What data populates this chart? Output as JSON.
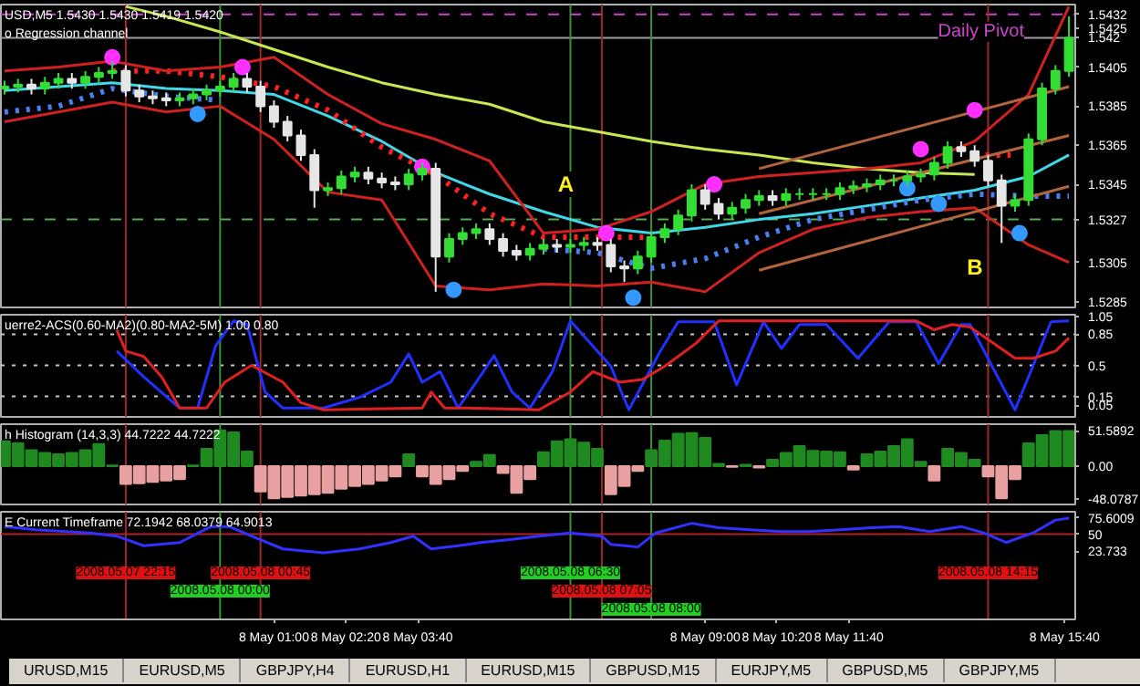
{
  "chart_data": [
    {
      "type": "candlestick",
      "title": "USD,M5  1.5430 1.5430 1.5419 1.5420",
      "subtitle": "o Regression channel",
      "tick_labels": "y",
      "x": [
        "2008-05-07T20:00",
        "2008-05-07T20:15",
        "2008-05-07T20:30",
        "2008-05-07T20:45",
        "2008-05-07T21:00",
        "2008-05-07T21:15",
        "2008-05-07T21:30",
        "2008-05-07T21:45",
        "2008-05-07T22:00",
        "2008-05-07T22:15",
        "2008-05-07T22:30",
        "2008-05-07T22:45",
        "2008-05-07T23:00",
        "2008-05-07T23:15",
        "2008-05-07T23:30",
        "2008-05-07T23:45",
        "2008-05-08T00:00",
        "2008-05-08T00:15",
        "2008-05-08T00:30",
        "2008-05-08T00:45",
        "2008-05-08T01:00",
        "2008-05-08T01:15",
        "2008-05-08T01:30",
        "2008-05-08T01:45",
        "2008-05-08T02:00",
        "2008-05-08T02:15",
        "2008-05-08T02:30",
        "2008-05-08T02:45",
        "2008-05-08T03:00",
        "2008-05-08T03:15",
        "2008-05-08T03:30",
        "2008-05-08T03:45",
        "2008-05-08T04:00",
        "2008-05-08T04:15",
        "2008-05-08T04:30",
        "2008-05-08T04:45",
        "2008-05-08T05:00",
        "2008-05-08T05:15",
        "2008-05-08T05:30",
        "2008-05-08T05:45",
        "2008-05-08T06:00",
        "2008-05-08T06:15",
        "2008-05-08T06:30",
        "2008-05-08T06:45",
        "2008-05-08T07:00",
        "2008-05-08T07:15",
        "2008-05-08T07:30",
        "2008-05-08T07:45",
        "2008-05-08T08:00",
        "2008-05-08T08:15",
        "2008-05-08T08:30",
        "2008-05-08T08:45",
        "2008-05-08T09:00",
        "2008-05-08T09:15",
        "2008-05-08T09:30",
        "2008-05-08T09:45",
        "2008-05-08T10:00",
        "2008-05-08T10:15",
        "2008-05-08T10:30",
        "2008-05-08T10:45",
        "2008-05-08T11:00",
        "2008-05-08T11:15",
        "2008-05-08T11:30",
        "2008-05-08T11:45",
        "2008-05-08T12:00",
        "2008-05-08T12:15",
        "2008-05-08T12:30",
        "2008-05-08T12:45",
        "2008-05-08T13:00",
        "2008-05-08T13:15",
        "2008-05-08T13:30",
        "2008-05-08T13:45",
        "2008-05-08T14:00",
        "2008-05-08T14:15",
        "2008-05-08T14:30",
        "2008-05-08T14:45",
        "2008-05-08T15:00",
        "2008-05-08T15:15",
        "2008-05-08T15:30",
        "2008-05-08T15:45"
      ],
      "ohlc": [
        [
          1.5394,
          1.5398,
          1.5391,
          1.5395
        ],
        [
          1.5395,
          1.5399,
          1.5392,
          1.5396
        ],
        [
          1.5396,
          1.5399,
          1.5391,
          1.5394
        ],
        [
          1.5394,
          1.54,
          1.5391,
          1.5397
        ],
        [
          1.5397,
          1.5402,
          1.5394,
          1.5399
        ],
        [
          1.5399,
          1.5402,
          1.5394,
          1.5397
        ],
        [
          1.5397,
          1.5403,
          1.5394,
          1.54
        ],
        [
          1.54,
          1.5405,
          1.5397,
          1.5402
        ],
        [
          1.5402,
          1.5408,
          1.5399,
          1.5403
        ],
        [
          1.5403,
          1.5406,
          1.539,
          1.5393
        ],
        [
          1.5393,
          1.5396,
          1.5387,
          1.539
        ],
        [
          1.539,
          1.5393,
          1.5386,
          1.5389
        ],
        [
          1.5389,
          1.5392,
          1.5385,
          1.5388
        ],
        [
          1.5388,
          1.5392,
          1.5385,
          1.5389
        ],
        [
          1.5389,
          1.5394,
          1.5386,
          1.5391
        ],
        [
          1.5391,
          1.5396,
          1.5388,
          1.5393
        ],
        [
          1.5393,
          1.5398,
          1.539,
          1.5395
        ],
        [
          1.5395,
          1.5402,
          1.5392,
          1.5399
        ],
        [
          1.5399,
          1.5402,
          1.5392,
          1.5395
        ],
        [
          1.5395,
          1.5398,
          1.5382,
          1.5385
        ],
        [
          1.5385,
          1.5388,
          1.5374,
          1.5377
        ],
        [
          1.5377,
          1.538,
          1.5367,
          1.537
        ],
        [
          1.537,
          1.5373,
          1.5357,
          1.536
        ],
        [
          1.536,
          1.5363,
          1.5333,
          1.5342
        ],
        [
          1.5342,
          1.5346,
          1.5339,
          1.5343
        ],
        [
          1.5343,
          1.5352,
          1.534,
          1.5349
        ],
        [
          1.5349,
          1.5354,
          1.5346,
          1.5351
        ],
        [
          1.5351,
          1.5354,
          1.5345,
          1.5348
        ],
        [
          1.5348,
          1.5351,
          1.5343,
          1.5346
        ],
        [
          1.5346,
          1.5349,
          1.5342,
          1.5345
        ],
        [
          1.5345,
          1.5353,
          1.5342,
          1.535
        ],
        [
          1.535,
          1.5356,
          1.5347,
          1.5353
        ],
        [
          1.5353,
          1.5356,
          1.529,
          1.5308
        ],
        [
          1.5308,
          1.532,
          1.5305,
          1.5317
        ],
        [
          1.5317,
          1.5323,
          1.5314,
          1.532
        ],
        [
          1.532,
          1.5325,
          1.5317,
          1.5322
        ],
        [
          1.5322,
          1.5325,
          1.5314,
          1.5317
        ],
        [
          1.5317,
          1.532,
          1.5308,
          1.5311
        ],
        [
          1.5311,
          1.5314,
          1.5306,
          1.5309
        ],
        [
          1.5309,
          1.5315,
          1.5306,
          1.5312
        ],
        [
          1.5312,
          1.5317,
          1.5309,
          1.5314
        ],
        [
          1.5314,
          1.5317,
          1.531,
          1.5313
        ],
        [
          1.5313,
          1.5317,
          1.531,
          1.5314
        ],
        [
          1.5314,
          1.5318,
          1.5311,
          1.5315
        ],
        [
          1.5315,
          1.5318,
          1.5311,
          1.5314
        ],
        [
          1.5314,
          1.5317,
          1.53,
          1.5303
        ],
        [
          1.5303,
          1.5306,
          1.5295,
          1.5302
        ],
        [
          1.5302,
          1.5311,
          1.5299,
          1.5308
        ],
        [
          1.5308,
          1.5321,
          1.5305,
          1.5318
        ],
        [
          1.5318,
          1.5325,
          1.5315,
          1.5322
        ],
        [
          1.5322,
          1.5332,
          1.5319,
          1.5329
        ],
        [
          1.5329,
          1.5345,
          1.5326,
          1.5342
        ],
        [
          1.5342,
          1.5345,
          1.5332,
          1.5335
        ],
        [
          1.5335,
          1.5338,
          1.5327,
          1.533
        ],
        [
          1.533,
          1.5336,
          1.5327,
          1.5333
        ],
        [
          1.5333,
          1.534,
          1.533,
          1.5337
        ],
        [
          1.5337,
          1.5342,
          1.5334,
          1.5339
        ],
        [
          1.5339,
          1.5342,
          1.5334,
          1.5337
        ],
        [
          1.5337,
          1.5343,
          1.5334,
          1.534
        ],
        [
          1.534,
          1.5343,
          1.5337,
          1.534
        ],
        [
          1.534,
          1.5343,
          1.5337,
          1.534
        ],
        [
          1.534,
          1.5343,
          1.5337,
          1.534
        ],
        [
          1.534,
          1.5346,
          1.5337,
          1.5343
        ],
        [
          1.5343,
          1.5347,
          1.534,
          1.5344
        ],
        [
          1.5344,
          1.5348,
          1.5341,
          1.5345
        ],
        [
          1.5345,
          1.535,
          1.5342,
          1.5347
        ],
        [
          1.5347,
          1.535,
          1.5344,
          1.5347
        ],
        [
          1.5347,
          1.5352,
          1.5344,
          1.5349
        ],
        [
          1.5349,
          1.5353,
          1.5346,
          1.535
        ],
        [
          1.535,
          1.5359,
          1.5347,
          1.5356
        ],
        [
          1.5356,
          1.5367,
          1.5353,
          1.5364
        ],
        [
          1.5364,
          1.5367,
          1.5359,
          1.5362
        ],
        [
          1.5362,
          1.5365,
          1.5354,
          1.5357
        ],
        [
          1.5357,
          1.536,
          1.5344,
          1.5347
        ],
        [
          1.5347,
          1.535,
          1.5315,
          1.5334
        ],
        [
          1.5334,
          1.534,
          1.5331,
          1.5337
        ],
        [
          1.5337,
          1.5371,
          1.5334,
          1.5368
        ],
        [
          1.5368,
          1.5397,
          1.5365,
          1.5394
        ],
        [
          1.5394,
          1.5406,
          1.5391,
          1.5403
        ],
        [
          1.5403,
          1.5431,
          1.54,
          1.542
        ]
      ],
      "colors": [
        "#33dd33",
        "#33dd33",
        "#e6e6e6",
        "#33dd33",
        "#33dd33",
        "#e6e6e6",
        "#33dd33",
        "#33dd33",
        "#33dd33",
        "#e6e6e6",
        "#e6e6e6",
        "#e6e6e6",
        "#e6e6e6",
        "#33dd33",
        "#33dd33",
        "#33dd33",
        "#33dd33",
        "#33dd33",
        "#e6e6e6",
        "#e6e6e6",
        "#e6e6e6",
        "#e6e6e6",
        "#e6e6e6",
        "#e6e6e6",
        "#33dd33",
        "#33dd33",
        "#33dd33",
        "#e6e6e6",
        "#e6e6e6",
        "#e6e6e6",
        "#33dd33",
        "#33dd33",
        "#e6e6e6",
        "#33dd33",
        "#33dd33",
        "#33dd33",
        "#e6e6e6",
        "#e6e6e6",
        "#e6e6e6",
        "#33dd33",
        "#33dd33",
        "#e6e6e6",
        "#33dd33",
        "#33dd33",
        "#e6e6e6",
        "#e6e6e6",
        "#e6e6e6",
        "#33dd33",
        "#33dd33",
        "#33dd33",
        "#33dd33",
        "#33dd33",
        "#e6e6e6",
        "#e6e6e6",
        "#33dd33",
        "#33dd33",
        "#33dd33",
        "#e6e6e6",
        "#33dd33",
        "#33dd33",
        "#33dd33",
        "#33dd33",
        "#33dd33",
        "#33dd33",
        "#33dd33",
        "#33dd33",
        "#33dd33",
        "#33dd33",
        "#33dd33",
        "#33dd33",
        "#33dd33",
        "#e6e6e6",
        "#e6e6e6",
        "#e6e6e6",
        "#e6e6e6",
        "#33dd33",
        "#33dd33",
        "#33dd33",
        "#33dd33",
        "#33dd33"
      ],
      "series": [
        {
          "type": "line",
          "color": "#c8e650",
          "x": [
            "2008-05-07T22:15",
            "2008-05-07T23:00",
            "2008-05-08T00:00",
            "2008-05-08T01:00",
            "2008-05-08T02:00",
            "2008-05-08T03:00",
            "2008-05-08T04:00",
            "2008-05-08T05:00",
            "2008-05-08T06:00",
            "2008-05-08T07:00",
            "2008-05-08T08:00",
            "2008-05-08T09:00",
            "2008-05-08T10:00",
            "2008-05-08T11:00",
            "2008-05-08T12:00",
            "2008-05-08T13:00",
            "2008-05-08T14:00"
          ],
          "values": [
            1.5436,
            1.5431,
            1.5423,
            1.5414,
            1.5405,
            1.5397,
            1.5391,
            1.5386,
            1.5377,
            1.5372,
            1.5367,
            1.5363,
            1.536,
            1.5356,
            1.5353,
            1.5351,
            1.535
          ]
        },
        {
          "type": "line",
          "color": "#40d8e8",
          "x": [
            "2008-05-07T20:00",
            "2008-05-07T21:00",
            "2008-05-07T22:00",
            "2008-05-07T23:00",
            "2008-05-08T00:00",
            "2008-05-08T01:00",
            "2008-05-08T02:00",
            "2008-05-08T03:00",
            "2008-05-08T04:00",
            "2008-05-08T05:00",
            "2008-05-08T06:00",
            "2008-05-08T07:00",
            "2008-05-08T08:00",
            "2008-05-08T09:00",
            "2008-05-08T10:00",
            "2008-05-08T11:00",
            "2008-05-08T12:00",
            "2008-05-08T13:00",
            "2008-05-08T14:00",
            "2008-05-08T15:00",
            "2008-05-08T15:45"
          ],
          "values": [
            1.5393,
            1.5395,
            1.5397,
            1.5394,
            1.5393,
            1.5391,
            1.538,
            1.5367,
            1.5351,
            1.534,
            1.5331,
            1.5323,
            1.532,
            1.5323,
            1.5327,
            1.533,
            1.5334,
            1.5338,
            1.5342,
            1.5349,
            1.536
          ]
        },
        {
          "type": "line",
          "color": "#4a7ff0",
          "line_style": "dotted",
          "x": [
            "2008-05-07T20:00",
            "2008-05-07T21:00",
            "2008-05-07T22:00",
            "2008-05-07T23:00",
            "2008-05-08T00:00",
            "2008-05-08T01:00",
            "2008-05-08T02:00",
            "2008-05-08T03:00",
            "2008-05-08T04:00",
            "2008-05-08T05:00",
            "2008-05-08T06:00",
            "2008-05-08T07:00",
            "2008-05-08T08:00",
            "2008-05-08T09:00",
            "2008-05-08T10:00",
            "2008-05-08T11:00",
            "2008-05-08T12:00",
            "2008-05-08T13:00",
            "2008-05-08T14:00",
            "2008-05-08T15:00",
            "2008-05-08T15:45"
          ],
          "values": [
            1.5382,
            1.5385,
            1.5394,
            1.539,
            1.5388,
            null,
            null,
            null,
            null,
            null,
            1.5312,
            1.531,
            1.5302,
            1.5307,
            1.5318,
            1.5327,
            1.5332,
            1.5337,
            1.534,
            1.5339,
            1.5339
          ]
        },
        {
          "type": "line",
          "color": "#ff2020",
          "line_style": "dotted",
          "x": [
            "2008-05-07T22:00",
            "2008-05-07T23:00",
            "2008-05-08T00:00",
            "2008-05-08T01:00",
            "2008-05-08T02:00",
            "2008-05-08T03:00",
            "2008-05-08T04:00",
            "2008-05-08T05:00",
            "2008-05-08T06:00",
            "2008-05-08T07:00",
            "2008-05-08T08:00",
            "2008-05-08T11:00",
            "2008-05-08T14:00",
            "2008-05-08T14:40"
          ],
          "values": [
            1.5403,
            1.5403,
            1.54,
            1.5395,
            1.5383,
            1.5364,
            1.535,
            1.533,
            1.5318,
            1.5318,
            1.5318,
            null,
            1.536,
            1.536
          ]
        },
        {
          "type": "line",
          "color": "#d02020",
          "x": [
            "2008-05-07T20:00",
            "2008-05-07T21:00",
            "2008-05-07T22:00",
            "2008-05-07T23:00",
            "2008-05-08T00:00",
            "2008-05-08T01:00",
            "2008-05-08T02:00",
            "2008-05-08T03:00",
            "2008-05-08T04:00",
            "2008-05-08T05:00",
            "2008-05-08T06:00",
            "2008-05-08T07:00",
            "2008-05-08T08:00",
            "2008-05-08T09:00",
            "2008-05-08T10:00",
            "2008-05-08T11:00",
            "2008-05-08T12:00",
            "2008-05-08T13:00",
            "2008-05-08T14:00",
            "2008-05-08T15:00",
            "2008-05-08T15:45"
          ],
          "values": [
            1.5403,
            1.5405,
            1.5408,
            1.5403,
            1.5405,
            1.541,
            1.5391,
            1.5376,
            1.5368,
            1.5357,
            1.532,
            1.5322,
            1.5331,
            1.5345,
            1.5349,
            1.5351,
            1.5353,
            1.5356,
            1.5367,
            1.5391,
            1.5436
          ]
        },
        {
          "type": "line",
          "color": "#d02020",
          "x": [
            "2008-05-07T20:00",
            "2008-05-07T21:00",
            "2008-05-07T22:00",
            "2008-05-07T23:00",
            "2008-05-08T00:00",
            "2008-05-08T01:00",
            "2008-05-08T02:00",
            "2008-05-08T03:00",
            "2008-05-08T04:00",
            "2008-05-08T05:00",
            "2008-05-08T06:00",
            "2008-05-08T07:00",
            "2008-05-08T08:00",
            "2008-05-08T09:00",
            "2008-05-08T10:00",
            "2008-05-08T11:00",
            "2008-05-08T12:00",
            "2008-05-08T13:00",
            "2008-05-08T14:00",
            "2008-05-08T15:00",
            "2008-05-08T15:45"
          ],
          "values": [
            1.5377,
            1.5382,
            1.5387,
            1.5382,
            1.5385,
            1.5368,
            1.5341,
            1.5337,
            1.5293,
            1.5291,
            1.5294,
            1.5293,
            1.5295,
            1.529,
            1.531,
            1.5322,
            1.5328,
            1.5331,
            1.5333,
            1.5314,
            1.5305
          ]
        },
        {
          "type": "line",
          "color": "#b4643c",
          "x": [
            "2008-05-08T10:00",
            "2008-05-08T15:45"
          ],
          "values": [
            1.5353,
            1.5395
          ]
        },
        {
          "type": "line",
          "color": "#b4643c",
          "x": [
            "2008-05-08T10:00",
            "2008-05-08T15:45"
          ],
          "values": [
            1.533,
            1.537
          ]
        },
        {
          "type": "line",
          "color": "#b4643c",
          "x": [
            "2008-05-08T10:00",
            "2008-05-08T15:45"
          ],
          "values": [
            1.5301,
            1.5344
          ]
        },
        {
          "type": "scatter",
          "marker": "circle",
          "color": "#ff30ff",
          "x": [
            "2008-05-07T22:00",
            "2008-05-08T00:25",
            "2008-05-08T03:45",
            "2008-05-08T07:10",
            "2008-05-08T09:10",
            "2008-05-08T13:00",
            "2008-05-08T14:00"
          ],
          "values": [
            1.541,
            1.5405,
            1.5354,
            1.532,
            1.5345,
            1.5363,
            1.5383
          ]
        },
        {
          "type": "scatter",
          "marker": "circle",
          "color": "#3399ff",
          "x": [
            "2008-05-07T23:35",
            "2008-05-08T04:20",
            "2008-05-08T07:40",
            "2008-05-08T12:45",
            "2008-05-08T13:20",
            "2008-05-08T14:50"
          ],
          "values": [
            1.5381,
            1.5291,
            1.5287,
            1.5343,
            1.5335,
            1.532
          ]
        }
      ],
      "xlim": [
        "2008-05-07T19:56",
        "2008-05-08T15:52"
      ],
      "ylim": [
        1.5282,
        1.5437
      ],
      "yticks": [
        1.5285,
        1.5305,
        1.5327,
        1.5345,
        1.5365,
        1.5385,
        1.5405,
        1.542,
        1.5425,
        1.5432
      ],
      "ref_lines": [
        {
          "axis": "y",
          "value": 1.5432,
          "label": "Daily Pivot",
          "color": "#cc44cc",
          "line_style": "dashed"
        },
        {
          "axis": "y",
          "value": 1.542,
          "color": "#a0a0a0",
          "line_style": "solid"
        },
        {
          "axis": "y",
          "value": 1.5327,
          "color": "#55aa55",
          "line_style": "dashed"
        },
        {
          "axis": "x",
          "value": "2008-05-07T22:15",
          "color": "#a02828"
        },
        {
          "axis": "x",
          "value": "2008-05-08T00:00",
          "color": "#3f8f3f"
        },
        {
          "axis": "x",
          "value": "2008-05-08T00:45",
          "color": "#a02828"
        },
        {
          "axis": "x",
          "value": "2008-05-08T06:30",
          "color": "#3f8f3f"
        },
        {
          "axis": "x",
          "value": "2008-05-08T07:05",
          "color": "#a02828"
        },
        {
          "axis": "x",
          "value": "2008-05-08T08:00",
          "color": "#3f8f3f"
        },
        {
          "axis": "x",
          "value": "2008-05-08T14:15",
          "color": "#a02828"
        }
      ],
      "annotations": [
        {
          "text": "A",
          "x": "2008-05-08T06:25",
          "y": 1.5345
        },
        "B"
      ]
    },
    {
      "type": "line",
      "title": "uerre2-ACS(0.60-MA2)(0.80-MA2-5M)  1.00 0.80",
      "tick_labels": "y",
      "series": [
        {
          "color": "#2030ff",
          "x": [
            "2008-05-07T22:05",
            "2008-05-07T22:35",
            "2008-05-07T23:15",
            "2008-05-07T23:35",
            "2008-05-07T23:55",
            "2008-05-08T00:15",
            "2008-05-08T00:30",
            "2008-05-08T00:50",
            "2008-05-08T01:10",
            "2008-05-08T01:55",
            "2008-05-08T02:35",
            "2008-05-08T03:10",
            "2008-05-08T03:30",
            "2008-05-08T03:45",
            "2008-05-08T04:05",
            "2008-05-08T04:25",
            "2008-05-08T04:45",
            "2008-05-08T05:05",
            "2008-05-08T05:25",
            "2008-05-08T05:45",
            "2008-05-08T06:10",
            "2008-05-08T06:30",
            "2008-05-08T07:15",
            "2008-05-08T07:35",
            "2008-05-08T08:10",
            "2008-05-08T08:30",
            "2008-05-08T09:10",
            "2008-05-08T09:35",
            "2008-05-08T10:05",
            "2008-05-08T10:25",
            "2008-05-08T10:45",
            "2008-05-08T11:15",
            "2008-05-08T11:50",
            "2008-05-08T12:25",
            "2008-05-08T12:55",
            "2008-05-08T13:20",
            "2008-05-08T13:45",
            "2008-05-08T13:55",
            "2008-05-08T14:45",
            "2008-05-08T15:25",
            "2008-05-08T15:45"
          ],
          "values": [
            0.66,
            0.37,
            0.02,
            0.02,
            0.72,
            1.0,
            0.96,
            0.2,
            0.02,
            0.02,
            0.14,
            0.31,
            0.63,
            0.31,
            0.43,
            0.02,
            0.31,
            0.61,
            0.2,
            0.02,
            0.43,
            1.0,
            0.49,
            0.0,
            0.66,
            0.99,
            0.99,
            0.28,
            0.99,
            0.69,
            0.96,
            0.96,
            0.58,
            0.99,
            0.99,
            0.52,
            0.96,
            0.96,
            0.0,
            0.99,
            1.0
          ]
        },
        {
          "color": "#e02020",
          "x": [
            "2008-05-07T22:05",
            "2008-05-07T22:15",
            "2008-05-07T22:35",
            "2008-05-07T22:55",
            "2008-05-07T23:15",
            "2008-05-07T23:45",
            "2008-05-08T00:05",
            "2008-05-08T00:35",
            "2008-05-08T01:10",
            "2008-05-08T01:30",
            "2008-05-08T01:55",
            "2008-05-08T03:45",
            "2008-05-08T03:55",
            "2008-05-08T04:10",
            "2008-05-08T04:35",
            "2008-05-08T05:55",
            "2008-05-08T06:30",
            "2008-05-08T06:55",
            "2008-05-08T07:25",
            "2008-05-08T07:50",
            "2008-05-08T08:15",
            "2008-05-08T08:50",
            "2008-05-08T09:15",
            "2008-05-08T12:55",
            "2008-05-08T13:15",
            "2008-05-08T13:35",
            "2008-05-08T13:55",
            "2008-05-08T14:25",
            "2008-05-08T14:45",
            "2008-05-08T15:05",
            "2008-05-08T15:30",
            "2008-05-08T15:45"
          ],
          "values": [
            0.9,
            0.66,
            0.6,
            0.37,
            0.02,
            0.02,
            0.31,
            0.5,
            0.31,
            0.08,
            0.0,
            0.02,
            0.2,
            0.02,
            0.02,
            0.0,
            0.2,
            0.43,
            0.31,
            0.34,
            0.49,
            0.75,
            1.0,
            1.0,
            0.9,
            0.96,
            0.93,
            0.72,
            0.58,
            0.58,
            0.66,
            0.81
          ]
        }
      ],
      "xlim": [
        "2008-05-07T19:56",
        "2008-05-08T15:52"
      ],
      "ylim": [
        -0.08,
        1.07
      ],
      "yticks": [
        0.05,
        0.15,
        0.5,
        0.85,
        1.05
      ],
      "ref_lines": [
        {
          "axis": "y",
          "value": 0.85,
          "color": "#c8c8c8",
          "line_style": "dotted"
        },
        {
          "axis": "y",
          "value": 0.5,
          "color": "#c8c8c8",
          "line_style": "dotted"
        },
        {
          "axis": "y",
          "value": 0.15,
          "color": "#c8c8c8",
          "line_style": "dotted"
        },
        {
          "axis": "x",
          "value": "2008-05-07T22:15",
          "color": "#a02828"
        },
        {
          "axis": "x",
          "value": "2008-05-08T00:00",
          "color": "#3f8f3f"
        },
        {
          "axis": "x",
          "value": "2008-05-08T00:45",
          "color": "#a02828"
        },
        {
          "axis": "x",
          "value": "2008-05-08T06:30",
          "color": "#3f8f3f"
        },
        {
          "axis": "x",
          "value": "2008-05-08T07:05",
          "color": "#a02828"
        },
        {
          "axis": "x",
          "value": "2008-05-08T08:00",
          "color": "#3f8f3f"
        },
        {
          "axis": "x",
          "value": "2008-05-08T14:15",
          "color": "#a02828"
        }
      ]
    },
    {
      "type": "bar",
      "title": "h Histogram (14,3,3) 44.7222 44.7222",
      "tick_labels": "y",
      "x": [
        "2008-05-07T20:00",
        "2008-05-07T20:15",
        "2008-05-07T20:30",
        "2008-05-07T20:45",
        "2008-05-07T21:00",
        "2008-05-07T21:15",
        "2008-05-07T21:30",
        "2008-05-07T21:45",
        "2008-05-07T22:00",
        "2008-05-07T22:15",
        "2008-05-07T22:30",
        "2008-05-07T22:45",
        "2008-05-07T23:00",
        "2008-05-07T23:15",
        "2008-05-07T23:30",
        "2008-05-07T23:45",
        "2008-05-08T00:00",
        "2008-05-08T00:15",
        "2008-05-08T00:30",
        "2008-05-08T00:45",
        "2008-05-08T01:00",
        "2008-05-08T01:15",
        "2008-05-08T01:30",
        "2008-05-08T01:45",
        "2008-05-08T02:00",
        "2008-05-08T02:15",
        "2008-05-08T02:30",
        "2008-05-08T02:45",
        "2008-05-08T03:00",
        "2008-05-08T03:15",
        "2008-05-08T03:30",
        "2008-05-08T03:45",
        "2008-05-08T04:00",
        "2008-05-08T04:15",
        "2008-05-08T04:30",
        "2008-05-08T04:45",
        "2008-05-08T05:00",
        "2008-05-08T05:15",
        "2008-05-08T05:30",
        "2008-05-08T05:45",
        "2008-05-08T06:00",
        "2008-05-08T06:15",
        "2008-05-08T06:30",
        "2008-05-08T06:45",
        "2008-05-08T07:00",
        "2008-05-08T07:15",
        "2008-05-08T07:30",
        "2008-05-08T07:45",
        "2008-05-08T08:00",
        "2008-05-08T08:15",
        "2008-05-08T08:30",
        "2008-05-08T08:45",
        "2008-05-08T09:00",
        "2008-05-08T09:15",
        "2008-05-08T09:30",
        "2008-05-08T09:45",
        "2008-05-08T10:00",
        "2008-05-08T10:15",
        "2008-05-08T10:30",
        "2008-05-08T10:45",
        "2008-05-08T11:00",
        "2008-05-08T11:15",
        "2008-05-08T11:30",
        "2008-05-08T11:45",
        "2008-05-08T12:00",
        "2008-05-08T12:15",
        "2008-05-08T12:30",
        "2008-05-08T12:45",
        "2008-05-08T13:00",
        "2008-05-08T13:15",
        "2008-05-08T13:30",
        "2008-05-08T13:45",
        "2008-05-08T14:00",
        "2008-05-08T14:15",
        "2008-05-08T14:30",
        "2008-05-08T14:45",
        "2008-05-08T15:00",
        "2008-05-08T15:15",
        "2008-05-08T15:30",
        "2008-05-08T15:45"
      ],
      "series": [
        {
          "color": "#1f8a1f",
          "values": [
            36,
            33,
            23,
            19,
            17,
            19,
            23,
            32,
            1,
            null,
            null,
            null,
            null,
            null,
            1,
            25,
            52,
            49,
            21,
            null,
            null,
            null,
            null,
            null,
            null,
            null,
            null,
            null,
            null,
            null,
            17,
            null,
            null,
            null,
            null,
            6,
            16,
            null,
            null,
            null,
            20,
            36,
            39,
            34,
            25,
            null,
            null,
            null,
            23,
            37,
            47,
            48,
            41,
            3,
            null,
            2,
            null,
            9,
            19,
            29,
            22,
            21,
            20,
            null,
            17,
            21,
            29,
            39,
            6,
            null,
            25,
            19,
            9,
            null,
            null,
            null,
            33,
            45,
            51,
            51
          ]
        },
        {
          "color": "#e8a0a0",
          "values": [
            null,
            null,
            null,
            null,
            null,
            null,
            null,
            null,
            null,
            -26,
            -25,
            -23,
            -21,
            -19,
            null,
            null,
            null,
            null,
            null,
            -37,
            -47,
            -45,
            -43,
            -41,
            -39,
            -33,
            -29,
            -26,
            -21,
            -15,
            null,
            -15,
            -26,
            -19,
            -7,
            null,
            null,
            -10,
            -39,
            -19,
            null,
            null,
            null,
            null,
            null,
            -41,
            -29,
            -7,
            null,
            null,
            null,
            null,
            null,
            null,
            -1,
            null,
            -2,
            null,
            null,
            null,
            null,
            null,
            null,
            -5,
            null,
            null,
            null,
            null,
            null,
            -21,
            null,
            null,
            null,
            -15,
            -47,
            -19,
            null,
            null,
            null,
            null
          ]
        }
      ],
      "xlim": [
        "2008-05-07T19:56",
        "2008-05-08T15:52"
      ],
      "ylim": [
        -56,
        61
      ],
      "yticks": [
        51.5892,
        {
          "value": 0,
          "label": "0.00"
        },
        -48.0787
      ],
      "ref_lines": [
        {
          "axis": "x",
          "value": "2008-05-07T22:15",
          "color": "#a02828"
        },
        {
          "axis": "x",
          "value": "2008-05-08T00:00",
          "color": "#3f8f3f"
        },
        {
          "axis": "x",
          "value": "2008-05-08T00:45",
          "color": "#a02828"
        },
        {
          "axis": "x",
          "value": "2008-05-08T06:30",
          "color": "#3f8f3f"
        },
        {
          "axis": "x",
          "value": "2008-05-08T07:05",
          "color": "#a02828"
        },
        {
          "axis": "x",
          "value": "2008-05-08T08:00",
          "color": "#3f8f3f"
        },
        {
          "axis": "x",
          "value": "2008-05-08T14:15",
          "color": "#a02828"
        }
      ]
    },
    {
      "type": "line",
      "title": "E Current Timeframe 72.1942 68.0379 64.9013",
      "series": [
        {
          "color": "#3030ff",
          "x": [
            "2008-05-07T20:00",
            "2008-05-07T20:35",
            "2008-05-07T21:35",
            "2008-05-07T22:05",
            "2008-05-07T22:35",
            "2008-05-07T23:15",
            "2008-05-07T23:50",
            "2008-05-08T00:10",
            "2008-05-08T00:35",
            "2008-05-08T01:10",
            "2008-05-08T01:55",
            "2008-05-08T02:35",
            "2008-05-08T03:10",
            "2008-05-08T03:35",
            "2008-05-08T03:55",
            "2008-05-08T04:25",
            "2008-05-08T04:50",
            "2008-05-08T05:25",
            "2008-05-08T05:55",
            "2008-05-08T06:30",
            "2008-05-08T07:05",
            "2008-05-08T07:15",
            "2008-05-08T07:45",
            "2008-05-08T08:05",
            "2008-05-08T08:45",
            "2008-05-08T09:15",
            "2008-05-08T09:50",
            "2008-05-08T10:25",
            "2008-05-08T10:55",
            "2008-05-08T11:30",
            "2008-05-08T12:05",
            "2008-05-08T12:35",
            "2008-05-08T13:10",
            "2008-05-08T13:45",
            "2008-05-08T14:10",
            "2008-05-08T14:35",
            "2008-05-08T15:05",
            "2008-05-08T15:30",
            "2008-05-08T15:45"
          ],
          "values": [
            62,
            57,
            52,
            47,
            32,
            37,
            62,
            62,
            47,
            27,
            21,
            27,
            37,
            47,
            27,
            32,
            37,
            42,
            47,
            52,
            47,
            34,
            30,
            52,
            67,
            60,
            57,
            54,
            54,
            57,
            60,
            62,
            54,
            62,
            52,
            37,
            52,
            72,
            75
          ]
        }
      ],
      "xlim": [
        "2008-05-07T19:56",
        "2008-05-08T15:52"
      ],
      "ylim": [
        -83,
        85
      ],
      "yticks": [
        23.733,
        50,
        75.6009
      ],
      "xticks": [
        {
          "value": "2008-05-08T01:00",
          "label": "8 May 01:00"
        },
        {
          "value": "2008-05-08T02:20",
          "label": "8 May 02:20"
        },
        {
          "value": "2008-05-08T03:40",
          "label": "8 May 03:40"
        },
        {
          "value": "2008-05-08T09:00",
          "label": "8 May 09:00"
        },
        {
          "value": "2008-05-08T10:20",
          "label": "8 May 10:20"
        },
        {
          "value": "2008-05-08T11:40",
          "label": "8 May 11:40"
        },
        {
          "value": "2008-05-08T15:40",
          "label": "8 May 15:40"
        }
      ],
      "ref_lines": [
        {
          "axis": "y",
          "value": 50,
          "color": "#b02020",
          "line_style": "solid"
        },
        {
          "axis": "x",
          "value": "2008-05-07T22:15",
          "label": "2008.05.07 22:15",
          "color": "#a02828"
        },
        {
          "axis": "x",
          "value": "2008-05-08T00:00",
          "label": "2008.05.08 00:00",
          "color": "#3f8f3f"
        },
        {
          "axis": "x",
          "value": "2008-05-08T00:45",
          "label": "2008.05.08 00:45",
          "color": "#a02828"
        },
        {
          "axis": "x",
          "value": "2008-05-08T06:30",
          "label": "2008.05.08 06:30",
          "color": "#3f8f3f"
        },
        {
          "axis": "x",
          "value": "2008-05-08T07:05",
          "label": "2008.05.08 07:05",
          "color": "#a02828"
        },
        {
          "axis": "x",
          "value": "2008-05-08T08:00",
          "label": "2008.05.08 08:00",
          "color": "#3f8f3f"
        },
        {
          "axis": "x",
          "value": "2008-05-08T14:15",
          "label": "2008.05.08 14:15",
          "color": "#a02828"
        }
      ],
      "annotations": [
        "URUSD,M15",
        "EURUSD,M5",
        "GBPJPY,H4",
        "EURUSD,H1",
        "EURUSD,M15",
        "GBPUSD,M15",
        "EURJPY,M5",
        "GBPUSD,M5",
        "GBPJPY,M5"
      ]
    }
  ]
}
